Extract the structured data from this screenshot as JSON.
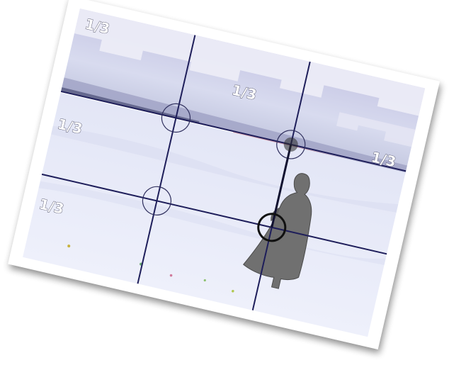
{
  "photo": {
    "description_icon": "rule-of-thirds-photo",
    "colors": {
      "sky": "#d9dcef",
      "sky_top": "#c9c9e6",
      "snow": "#eceef9",
      "horizon": "#8e8fb4",
      "grid_line": "#1e1e5a",
      "circle": "#30305e",
      "figure": "#6f6f6f",
      "frame": "#ffffff"
    }
  },
  "labels": {
    "top_left": "1/3",
    "top_center": "1/3",
    "right": "1/3",
    "left_upper": "1/3",
    "left_lower": "1/3"
  }
}
